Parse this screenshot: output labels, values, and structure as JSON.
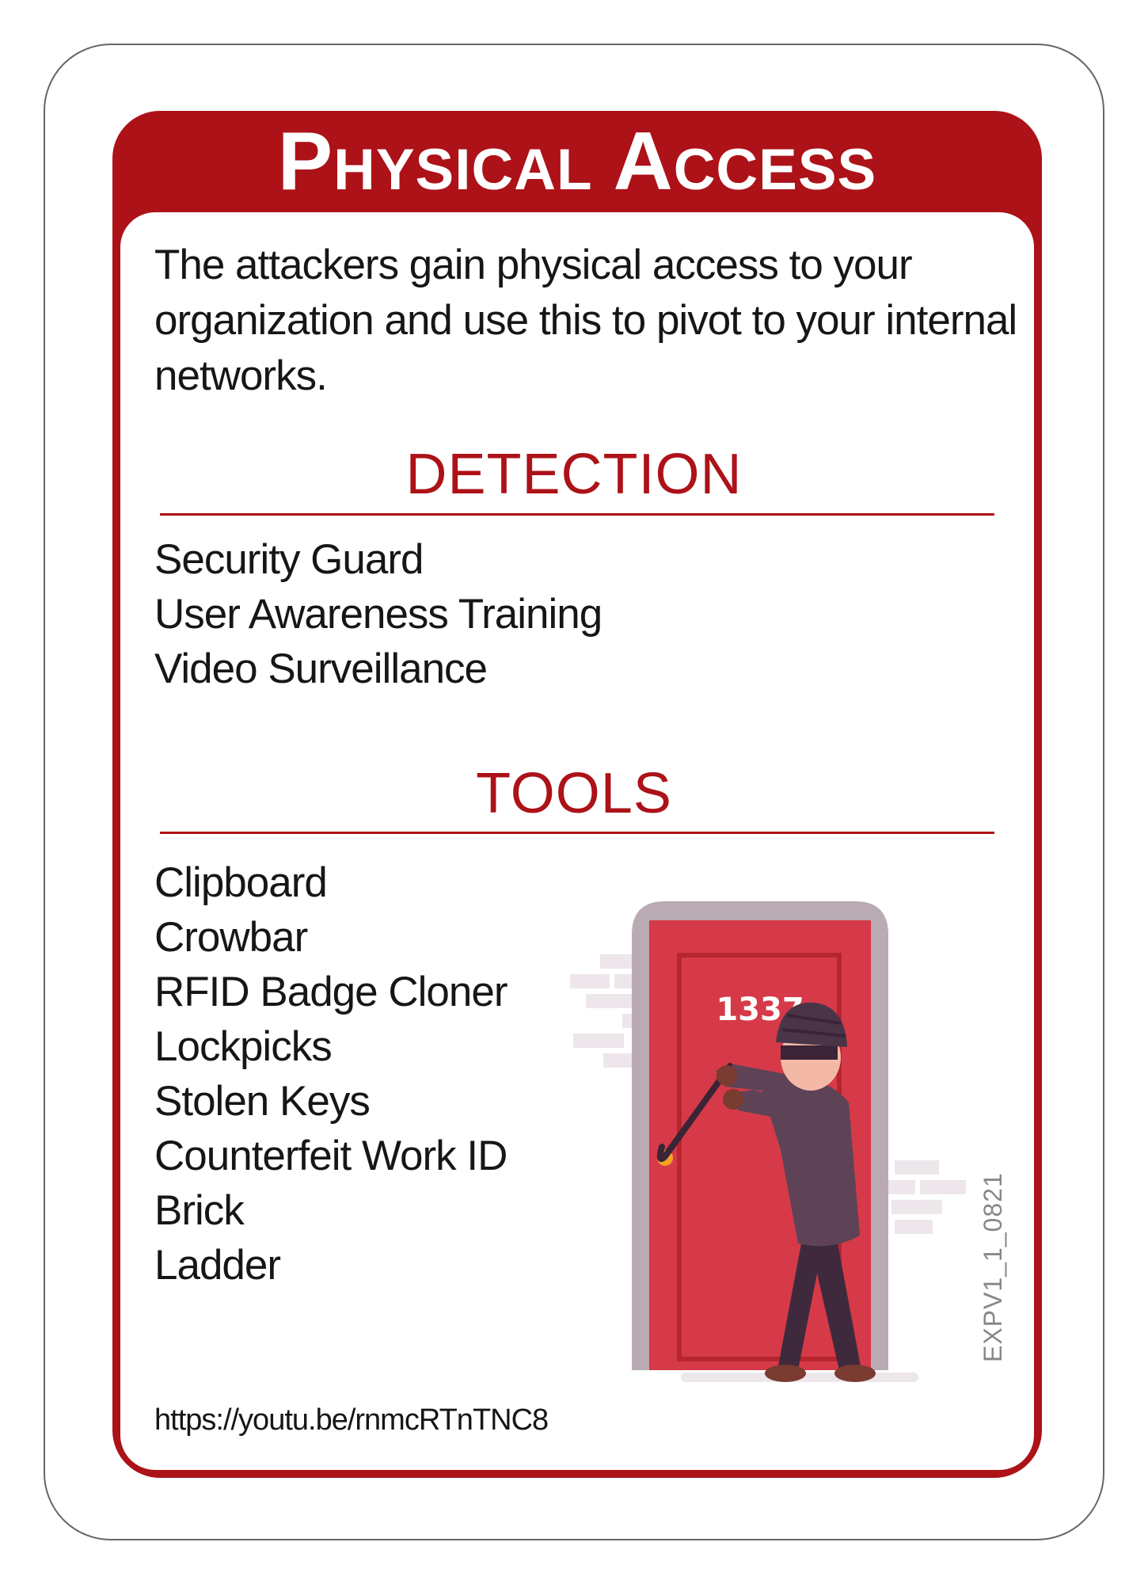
{
  "card": {
    "title": "Physical Access",
    "description": "The attackers gain physical access to your organization and use this to pivot to your internal networks.",
    "colors": {
      "accent": "#ac1218",
      "door": "#d63a48",
      "frame": "#b9aab4"
    }
  },
  "detection": {
    "heading": "DETECTION",
    "items": [
      "Security Guard",
      "User Awareness Training",
      "Video Surveillance"
    ]
  },
  "tools": {
    "heading": "TOOLS",
    "items": [
      "Clipboard",
      "Crowbar",
      "RFID Badge Cloner",
      "Lockpicks",
      "Stolen Keys",
      "Counterfeit Work ID",
      "Brick",
      "Ladder"
    ]
  },
  "illustration": {
    "icon": "burglar-prying-door-illustration",
    "door_number": "1337"
  },
  "footer": {
    "link": "https://youtu.be/rnmcRTnTNC8",
    "code": "EXPV1_1_0821"
  }
}
